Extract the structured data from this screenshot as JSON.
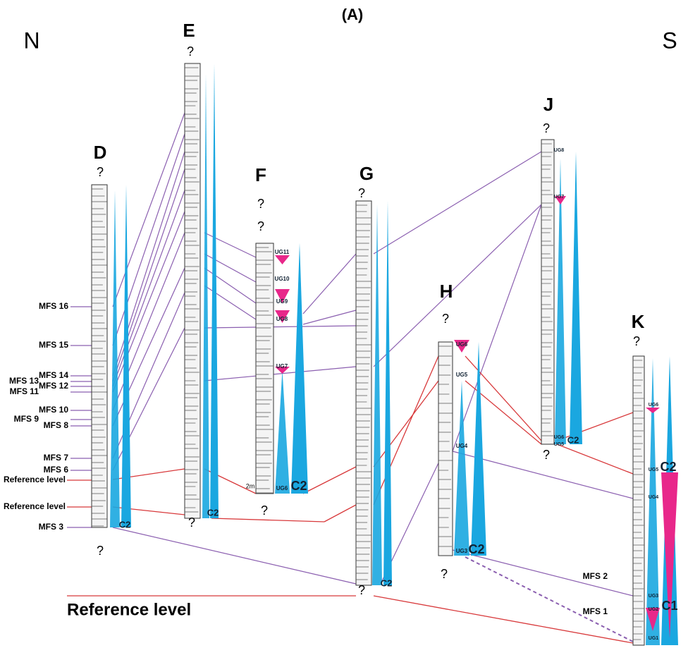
{
  "title": "(A)",
  "north": "N",
  "south": "S",
  "sections": [
    {
      "label": "D",
      "top_marks": [
        "?"
      ],
      "bottom_marks": [
        "?"
      ],
      "units": [
        "C2"
      ]
    },
    {
      "label": "E",
      "top_marks": [
        "?"
      ],
      "bottom_marks": [
        "?"
      ],
      "units": [
        "C2"
      ]
    },
    {
      "label": "F",
      "top_marks": [
        "?",
        "?"
      ],
      "bottom_marks": [
        "?"
      ],
      "units": [
        "UG11",
        "UG10",
        "UG9",
        "UG8",
        "UG7",
        "UG6",
        "C2"
      ],
      "scale": "2m"
    },
    {
      "label": "G",
      "top_marks": [
        "?"
      ],
      "bottom_marks": [
        "?"
      ],
      "units": [
        "C2"
      ]
    },
    {
      "label": "H",
      "top_marks": [
        "?"
      ],
      "bottom_marks": [
        "?"
      ],
      "units": [
        "UG6",
        "UG5",
        "UG4",
        "UG3",
        "C2"
      ]
    },
    {
      "label": "J",
      "top_marks": [
        "?"
      ],
      "bottom_marks": [
        "?"
      ],
      "units": [
        "UG8",
        "UG7",
        "UG6",
        "UG5",
        "C2"
      ]
    },
    {
      "label": "K",
      "top_marks": [
        "?"
      ],
      "bottom_marks": [],
      "units": [
        "UG6",
        "UG5",
        "UG4",
        "UG3",
        "UG2",
        "UG1",
        "C2",
        "C1"
      ],
      "mfs": [
        "MFS 2",
        "MFS 1"
      ]
    }
  ],
  "mfs_labels": [
    "MFS 16",
    "MFS 15",
    "MFS 14",
    "MFS 13",
    "MFS 12",
    "MFS 11",
    "MFS 10",
    "MFS 9",
    "MFS 8",
    "MFS 7",
    "MFS 6",
    "MFS 3"
  ],
  "reference_levels": [
    "Reference level",
    "Reference level",
    "Reference level"
  ]
}
